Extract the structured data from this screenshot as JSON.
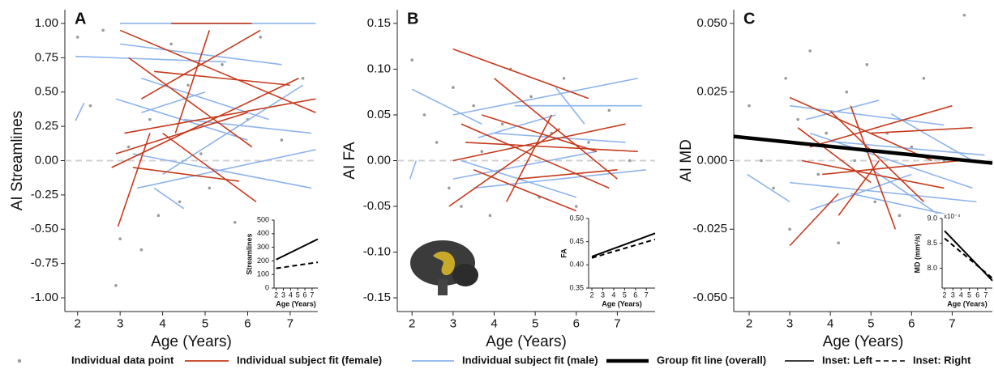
{
  "chart_data": [
    {
      "type": "line",
      "label": "A",
      "ylabel": "AI Streamlines",
      "xlabel": "Age (Years)",
      "xlim": [
        1.7,
        7.65
      ],
      "ylim": [
        -1.1,
        1.1
      ],
      "xticks": [
        2,
        3,
        4,
        5,
        6,
        7
      ],
      "yticks": [
        {
          "value": 1,
          "label": "1.00"
        },
        0.75,
        {
          "value": 0.5,
          "label": "0.50"
        },
        0.25,
        {
          "value": 0,
          "label": "0.00"
        },
        -0.25,
        {
          "value": -0.5,
          "label": "-0.50"
        },
        -0.75,
        {
          "value": -1,
          "label": "-1.00"
        }
      ],
      "hline": 0,
      "points": {
        "x": [
          2.0,
          2.3,
          2.6,
          2.9,
          3.0,
          3.2,
          3.5,
          3.7,
          3.9,
          4.2,
          4.4,
          4.6,
          4.9,
          5.1,
          5.4,
          5.7,
          6.0,
          6.3,
          6.8,
          7.3
        ],
        "y": [
          0.9,
          0.4,
          0.95,
          -0.91,
          -0.57,
          0.1,
          -0.65,
          0.3,
          -0.4,
          0.85,
          -0.3,
          0.55,
          0.05,
          -0.2,
          0.7,
          -0.45,
          0.3,
          0.9,
          0.15,
          0.6
        ]
      },
      "female": [
        {
          "x": [
            2.9,
            6.0
          ],
          "y": [
            0.05,
            0.35
          ]
        },
        {
          "x": [
            3.0,
            7.6
          ],
          "y": [
            0.95,
            0.35
          ]
        },
        {
          "x": [
            3.5,
            6.3
          ],
          "y": [
            0.45,
            0.95
          ]
        },
        {
          "x": [
            2.95,
            3.7
          ],
          "y": [
            -0.48,
            0.2
          ]
        },
        {
          "x": [
            3.2,
            6.1
          ],
          "y": [
            0.75,
            0.1
          ]
        },
        {
          "x": [
            2.8,
            7.2
          ],
          "y": [
            -0.05,
            0.6
          ]
        },
        {
          "x": [
            4.0,
            6.2
          ],
          "y": [
            0.2,
            -0.3
          ]
        },
        {
          "x": [
            3.1,
            7.6
          ],
          "y": [
            0.2,
            0.45
          ]
        },
        {
          "x": [
            4.3,
            5.1
          ],
          "y": [
            0.2,
            0.95
          ]
        },
        {
          "x": [
            3.8,
            7.0
          ],
          "y": [
            0.65,
            0.55
          ]
        },
        {
          "x": [
            4.2,
            6.1
          ],
          "y": [
            1.0,
            1.0
          ]
        },
        {
          "x": [
            3.3,
            5.8
          ],
          "y": [
            -0.05,
            -0.15
          ]
        }
      ],
      "male": [
        {
          "x": [
            1.95,
            2.15
          ],
          "y": [
            0.29,
            0.42
          ]
        },
        {
          "x": [
            1.95,
            5.5
          ],
          "y": [
            0.76,
            0.72
          ]
        },
        {
          "x": [
            3.0,
            7.6
          ],
          "y": [
            1.0,
            1.0
          ]
        },
        {
          "x": [
            3.3,
            7.5
          ],
          "y": [
            0.05,
            -0.2
          ]
        },
        {
          "x": [
            2.9,
            6.0
          ],
          "y": [
            0.45,
            0.15
          ]
        },
        {
          "x": [
            3.4,
            7.6
          ],
          "y": [
            -0.2,
            0.08
          ]
        },
        {
          "x": [
            3.5,
            6.5
          ],
          "y": [
            0.6,
            0.3
          ]
        },
        {
          "x": [
            4.0,
            7.3
          ],
          "y": [
            -0.1,
            0.55
          ]
        },
        {
          "x": [
            3.8,
            4.5
          ],
          "y": [
            -0.2,
            -0.35
          ]
        },
        {
          "x": [
            3.0,
            6.8
          ],
          "y": [
            0.85,
            0.7
          ]
        },
        {
          "x": [
            4.5,
            7.5
          ],
          "y": [
            0.3,
            0.2
          ]
        },
        {
          "x": [
            3.5,
            5.0
          ],
          "y": [
            0.35,
            0.5
          ]
        }
      ],
      "inset": {
        "ylabel": "Streamlines",
        "xlabel": "Age (Years)",
        "xlim": [
          1.7,
          7.8
        ],
        "ylim": [
          0,
          500
        ],
        "xticks": [
          2,
          3,
          4,
          5,
          6,
          7
        ],
        "yticks": [
          0,
          100,
          200,
          300,
          400,
          500
        ],
        "left": {
          "x": [
            2,
            7.8
          ],
          "y": [
            210,
            360
          ]
        },
        "right": {
          "x": [
            2,
            7.8
          ],
          "y": [
            145,
            190
          ]
        }
      }
    },
    {
      "type": "line",
      "label": "B",
      "ylabel": "AI FA",
      "xlabel": "Age (Years)",
      "xlim": [
        1.64,
        7.92
      ],
      "ylim": [
        -0.165,
        0.165
      ],
      "xticks": [
        2,
        3,
        4,
        5,
        6,
        7
      ],
      "yticks": [
        0.15,
        {
          "value": 0.1,
          "label": "0.10"
        },
        0.05,
        {
          "value": 0,
          "label": "0.00"
        },
        -0.05,
        {
          "value": -0.1,
          "label": "-0.10"
        },
        -0.15
      ],
      "hline": 0,
      "points": {
        "x": [
          2.0,
          2.3,
          2.6,
          2.9,
          3.0,
          3.2,
          3.5,
          3.7,
          3.9,
          4.2,
          4.4,
          4.6,
          4.9,
          5.1,
          5.4,
          5.7,
          6.0,
          6.3,
          6.8,
          7.3
        ],
        "y": [
          0.11,
          0.05,
          0.02,
          -0.03,
          0.08,
          -0.05,
          0.06,
          0.01,
          -0.06,
          0.04,
          0.1,
          -0.02,
          0.07,
          -0.04,
          0.03,
          0.09,
          -0.05,
          0.02,
          0.055,
          0.0
        ]
      },
      "female": [
        {
          "x": [
            3.0,
            6.3
          ],
          "y": [
            0.122,
            0.068
          ]
        },
        {
          "x": [
            3.0,
            7.2
          ],
          "y": [
            0.0,
            0.04
          ]
        },
        {
          "x": [
            3.2,
            6.8
          ],
          "y": [
            0.04,
            -0.03
          ]
        },
        {
          "x": [
            3.5,
            6.0
          ],
          "y": [
            -0.01,
            -0.055
          ]
        },
        {
          "x": [
            2.9,
            5.6
          ],
          "y": [
            -0.05,
            0.035
          ]
        },
        {
          "x": [
            4.0,
            7.0
          ],
          "y": [
            0.09,
            -0.02
          ]
        },
        {
          "x": [
            3.3,
            7.5
          ],
          "y": [
            0.02,
            0.01
          ]
        },
        {
          "x": [
            4.3,
            5.4
          ],
          "y": [
            -0.045,
            0.05
          ]
        },
        {
          "x": [
            3.7,
            6.5
          ],
          "y": [
            0.05,
            0.01
          ]
        },
        {
          "x": [
            4.6,
            7.0
          ],
          "y": [
            -0.02,
            -0.01
          ]
        }
      ],
      "male": [
        {
          "x": [
            1.95,
            2.1
          ],
          "y": [
            -0.02,
            0.0
          ]
        },
        {
          "x": [
            2.0,
            3.7
          ],
          "y": [
            0.078,
            0.04
          ]
        },
        {
          "x": [
            3.0,
            7.5
          ],
          "y": [
            0.05,
            0.09
          ]
        },
        {
          "x": [
            3.5,
            7.7
          ],
          "y": [
            -0.03,
            -0.01
          ]
        },
        {
          "x": [
            4.0,
            7.2
          ],
          "y": [
            0.03,
            0.02
          ]
        },
        {
          "x": [
            5.5,
            6.2
          ],
          "y": [
            0.08,
            0.04
          ]
        },
        {
          "x": [
            3.2,
            6.0
          ],
          "y": [
            0.0,
            -0.04
          ]
        },
        {
          "x": [
            4.5,
            7.6
          ],
          "y": [
            0.06,
            0.06
          ]
        },
        {
          "x": [
            3.6,
            5.5
          ],
          "y": [
            0.025,
            0.05
          ]
        },
        {
          "x": [
            3.0,
            6.5
          ],
          "y": [
            -0.02,
            0.01
          ]
        }
      ],
      "inset": {
        "ylabel": "FA",
        "xlabel": "Age (Years)",
        "xlim": [
          1.7,
          7.8
        ],
        "ylim": [
          0.35,
          0.5
        ],
        "xticks": [
          2,
          3,
          4,
          5,
          6,
          7
        ],
        "yticks": [
          0.35,
          {
            "value": 0.4,
            "label": "0.40"
          },
          0.45,
          {
            "value": 0.5,
            "label": "0.50"
          }
        ],
        "left": {
          "x": [
            2,
            7.8
          ],
          "y": [
            0.418,
            0.468
          ]
        },
        "right": {
          "x": [
            2,
            7.8
          ],
          "y": [
            0.415,
            0.455
          ]
        }
      }
    },
    {
      "type": "line",
      "label": "C",
      "ylabel": "AI MD",
      "xlabel": "Age (Years)",
      "xlim": [
        1.62,
        7.99
      ],
      "ylim": [
        -0.055,
        0.055
      ],
      "xticks": [
        2,
        3,
        4,
        5,
        6,
        7
      ],
      "yticks": [
        {
          "value": 0.05,
          "label": "0.050"
        },
        0.025,
        {
          "value": 0,
          "label": "0.000"
        },
        -0.025,
        {
          "value": -0.05,
          "label": "-0.050"
        }
      ],
      "hline": 0,
      "points": {
        "x": [
          2.0,
          2.3,
          2.6,
          2.9,
          3.0,
          3.2,
          3.5,
          3.7,
          3.9,
          4.2,
          4.4,
          4.6,
          4.9,
          5.1,
          5.4,
          5.7,
          6.0,
          6.3,
          6.8,
          7.3
        ],
        "y": [
          0.02,
          0.0,
          -0.01,
          0.03,
          -0.025,
          0.015,
          0.04,
          -0.005,
          0.01,
          -0.03,
          0.025,
          0.0,
          0.035,
          -0.015,
          0.01,
          -0.02,
          0.005,
          0.03,
          0.0,
          0.053
        ]
      },
      "female": [
        {
          "x": [
            3.0,
            6.5
          ],
          "y": [
            0.023,
            0.0
          ]
        },
        {
          "x": [
            3.0,
            4.2
          ],
          "y": [
            -0.031,
            -0.012
          ]
        },
        {
          "x": [
            3.5,
            7.0
          ],
          "y": [
            0.005,
            0.02
          ]
        },
        {
          "x": [
            4.0,
            6.3
          ],
          "y": [
            0.018,
            -0.015
          ]
        },
        {
          "x": [
            3.3,
            6.8
          ],
          "y": [
            0.0,
            -0.01
          ]
        },
        {
          "x": [
            4.5,
            5.6
          ],
          "y": [
            0.02,
            -0.025
          ]
        },
        {
          "x": [
            3.8,
            7.2
          ],
          "y": [
            -0.005,
            0.0
          ]
        },
        {
          "x": [
            4.2,
            5.2
          ],
          "y": [
            -0.02,
            0.0
          ]
        },
        {
          "x": [
            5.0,
            7.5
          ],
          "y": [
            0.01,
            0.012
          ]
        },
        {
          "x": [
            3.2,
            5.0
          ],
          "y": [
            0.012,
            -0.008
          ]
        }
      ],
      "male": [
        {
          "x": [
            1.95,
            3.0
          ],
          "y": [
            -0.005,
            -0.015
          ]
        },
        {
          "x": [
            3.0,
            6.8
          ],
          "y": [
            0.02,
            0.013
          ]
        },
        {
          "x": [
            3.5,
            7.5
          ],
          "y": [
            0.01,
            -0.01
          ]
        },
        {
          "x": [
            3.0,
            7.6
          ],
          "y": [
            -0.008,
            -0.015
          ]
        },
        {
          "x": [
            4.0,
            7.8
          ],
          "y": [
            0.007,
            0.002
          ]
        },
        {
          "x": [
            5.5,
            7.5
          ],
          "y": [
            0.017,
            0.0
          ]
        },
        {
          "x": [
            3.5,
            6.0
          ],
          "y": [
            -0.018,
            -0.005
          ]
        },
        {
          "x": [
            4.5,
            7.0
          ],
          "y": [
            -0.012,
            -0.02
          ]
        },
        {
          "x": [
            3.4,
            5.2
          ],
          "y": [
            0.015,
            0.022
          ]
        },
        {
          "x": [
            5.0,
            7.2
          ],
          "y": [
            -0.003,
            -0.025
          ]
        }
      ],
      "group": {
        "x": [
          1.62,
          7.99
        ],
        "y": [
          0.0088,
          -0.0009
        ]
      },
      "inset": {
        "ylabel": "MD (mm²/s)",
        "multiplier": "x10⁻⁴",
        "xlabel": "Age (Years)",
        "xlim": [
          1.7,
          7.8
        ],
        "ylim": [
          7.6,
          9.0
        ],
        "xticks": [
          2,
          3,
          4,
          5,
          6,
          7
        ],
        "yticks": [
          {
            "value": 8,
            "label": "8.0"
          },
          8.5,
          {
            "value": 9,
            "label": "9.0"
          }
        ],
        "left": {
          "x": [
            2,
            7.8
          ],
          "y": [
            8.75,
            7.75
          ]
        },
        "right": {
          "x": [
            2,
            7.8
          ],
          "y": [
            8.6,
            7.8
          ]
        }
      }
    }
  ],
  "legend": [
    {
      "name": "Individual data point",
      "color": "#9a9a9a"
    },
    {
      "name": "Individual subject fit (female)",
      "color": "#c53a1c"
    },
    {
      "name": "Individual subject fit (male)",
      "color": "#8db3ec"
    },
    {
      "name": "Group fit line (overall)",
      "color": "#000000"
    },
    {
      "name": "Inset: Left",
      "color": "#000000"
    },
    {
      "name": "Inset: Right",
      "color": "#000000"
    }
  ]
}
